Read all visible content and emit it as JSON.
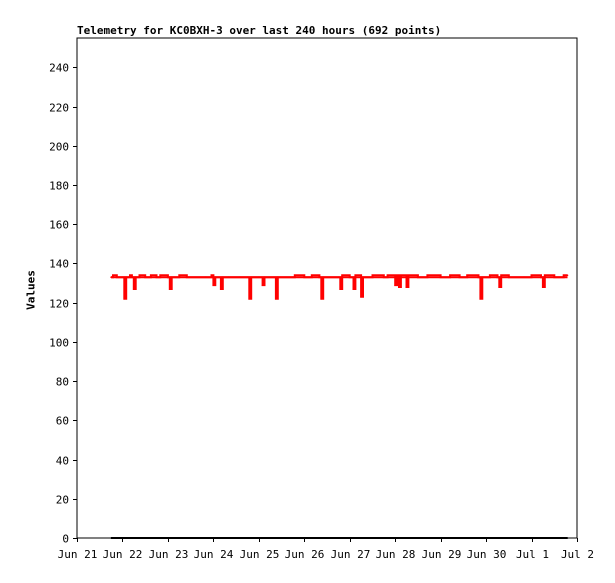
{
  "chart_data": {
    "type": "line",
    "title": "Telemetry for KC0BXH-3 over last 240 hours (692 points)",
    "xlabel": "",
    "ylabel": "Values",
    "ylim": [
      0,
      255
    ],
    "yticks": [
      0,
      20,
      40,
      60,
      80,
      100,
      120,
      140,
      160,
      180,
      200,
      220,
      240
    ],
    "xlim": [
      "Jun 21",
      "Jul 2"
    ],
    "xticks": [
      "Jun 21",
      "Jun 22",
      "Jun 23",
      "Jun 24",
      "Jun 25",
      "Jun 26",
      "Jun 27",
      "Jun 28",
      "Jun 29",
      "Jun 30",
      "Jul 1",
      "Jul 2"
    ],
    "grid": false,
    "legend": "none",
    "series": [
      {
        "color": "#ff0000",
        "baseline": 133,
        "x_start": "Jun 21 18:00",
        "x_end": "Jul 1 19:00",
        "points": [
          [
            "Jun 21 18:00",
            133
          ],
          [
            "Jun 21 19:00",
            134
          ],
          [
            "Jun 21 21:00",
            133
          ],
          [
            "Jun 22 00:00",
            133
          ],
          [
            "Jun 22 01:00",
            122
          ],
          [
            "Jun 22 02:00",
            133
          ],
          [
            "Jun 22 04:00",
            134
          ],
          [
            "Jun 22 05:00",
            133
          ],
          [
            "Jun 22 06:00",
            127
          ],
          [
            "Jun 22 07:00",
            133
          ],
          [
            "Jun 22 09:00",
            134
          ],
          [
            "Jun 22 12:00",
            133
          ],
          [
            "Jun 22 15:00",
            134
          ],
          [
            "Jun 22 18:00",
            133
          ],
          [
            "Jun 22 20:00",
            134
          ],
          [
            "Jun 23 00:00",
            133
          ],
          [
            "Jun 23 01:00",
            127
          ],
          [
            "Jun 23 02:00",
            133
          ],
          [
            "Jun 23 06:00",
            134
          ],
          [
            "Jun 23 10:00",
            133
          ],
          [
            "Jun 23 20:00",
            133
          ],
          [
            "Jun 23 23:00",
            134
          ],
          [
            "Jun 24 00:00",
            129
          ],
          [
            "Jun 24 01:00",
            133
          ],
          [
            "Jun 24 04:00",
            127
          ],
          [
            "Jun 24 05:00",
            133
          ],
          [
            "Jun 24 08:00",
            133
          ],
          [
            "Jun 24 14:00",
            133
          ],
          [
            "Jun 24 18:00",
            133
          ],
          [
            "Jun 24 19:00",
            122
          ],
          [
            "Jun 24 20:00",
            133
          ],
          [
            "Jun 25 00:00",
            133
          ],
          [
            "Jun 25 02:00",
            129
          ],
          [
            "Jun 25 03:00",
            133
          ],
          [
            "Jun 25 08:00",
            133
          ],
          [
            "Jun 25 09:00",
            122
          ],
          [
            "Jun 25 10:00",
            133
          ],
          [
            "Jun 25 18:00",
            133
          ],
          [
            "Jun 25 19:00",
            134
          ],
          [
            "Jun 26 00:00",
            133
          ],
          [
            "Jun 26 04:00",
            134
          ],
          [
            "Jun 26 08:00",
            133
          ],
          [
            "Jun 26 09:00",
            122
          ],
          [
            "Jun 26 10:00",
            133
          ],
          [
            "Jun 26 18:00",
            133
          ],
          [
            "Jun 26 19:00",
            127
          ],
          [
            "Jun 26 20:00",
            134
          ],
          [
            "Jun 27 00:00",
            133
          ],
          [
            "Jun 27 02:00",
            127
          ],
          [
            "Jun 27 03:00",
            134
          ],
          [
            "Jun 27 06:00",
            123
          ],
          [
            "Jun 27 07:00",
            133
          ],
          [
            "Jun 27 12:00",
            134
          ],
          [
            "Jun 27 18:00",
            133
          ],
          [
            "Jun 27 20:00",
            134
          ],
          [
            "Jun 28 00:00",
            129
          ],
          [
            "Jun 28 01:00",
            134
          ],
          [
            "Jun 28 02:00",
            128
          ],
          [
            "Jun 28 03:00",
            134
          ],
          [
            "Jun 28 06:00",
            128
          ],
          [
            "Jun 28 07:00",
            134
          ],
          [
            "Jun 28 12:00",
            133
          ],
          [
            "Jun 28 17:00",
            134
          ],
          [
            "Jun 29 00:00",
            133
          ],
          [
            "Jun 29 05:00",
            134
          ],
          [
            "Jun 29 10:00",
            133
          ],
          [
            "Jun 29 14:00",
            134
          ],
          [
            "Jun 29 20:00",
            133
          ],
          [
            "Jun 29 21:00",
            122
          ],
          [
            "Jun 29 22:00",
            133
          ],
          [
            "Jun 30 02:00",
            134
          ],
          [
            "Jun 30 06:00",
            133
          ],
          [
            "Jun 30 07:00",
            128
          ],
          [
            "Jun 30 08:00",
            134
          ],
          [
            "Jun 30 12:00",
            133
          ],
          [
            "Jun 30 20:00",
            133
          ],
          [
            "Jul 1 00:00",
            134
          ],
          [
            "Jul 1 05:00",
            133
          ],
          [
            "Jul 1 06:00",
            128
          ],
          [
            "Jul 1 07:00",
            134
          ],
          [
            "Jul 1 12:00",
            133
          ],
          [
            "Jul 1 17:00",
            134
          ],
          [
            "Jul 1 19:00",
            134
          ]
        ]
      },
      {
        "color": "#000000",
        "baseline": 0,
        "x_start": "Jun 21 18:00",
        "x_end": "Jul 1 19:00",
        "points": [
          [
            "Jun 21 18:00",
            0
          ],
          [
            "Jul 1 19:00",
            0
          ]
        ]
      }
    ]
  }
}
